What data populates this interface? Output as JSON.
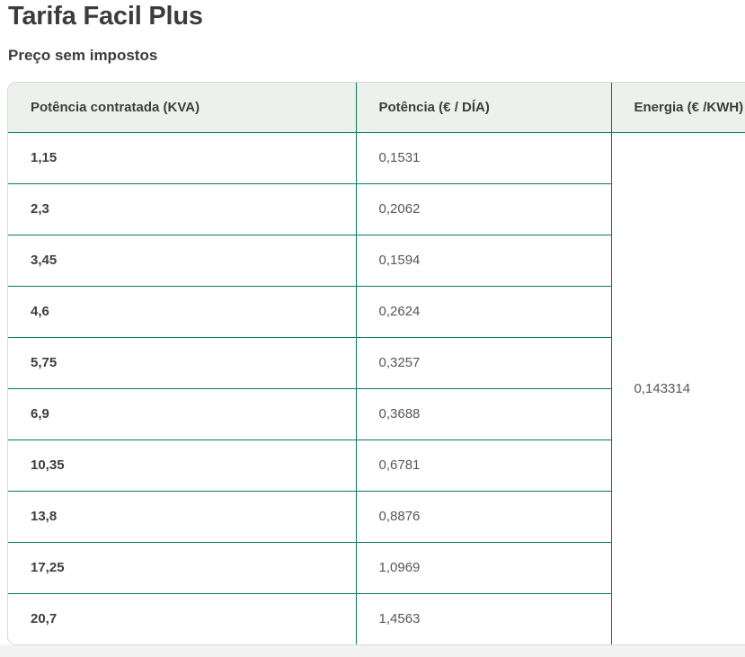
{
  "page": {
    "title": "Tarifa Facil Plus",
    "subtitle": "Preço sem impostos"
  },
  "table": {
    "columns": [
      "Potência contratada (KVA)",
      "Potência (€ / DÍA)",
      "Energia (€ /KWH)"
    ],
    "rows": [
      {
        "kva": "1,15",
        "potencia": "0,1531"
      },
      {
        "kva": "2,3",
        "potencia": "0,2062"
      },
      {
        "kva": "3,45",
        "potencia": "0,1594"
      },
      {
        "kva": "4,6",
        "potencia": "0,2624"
      },
      {
        "kva": "5,75",
        "potencia": "0,3257"
      },
      {
        "kva": "6,9",
        "potencia": "0,3688"
      },
      {
        "kva": "10,35",
        "potencia": "0,6781"
      },
      {
        "kva": "13,8",
        "potencia": "0,8876"
      },
      {
        "kva": "17,25",
        "potencia": "1,0969"
      },
      {
        "kva": "20,7",
        "potencia": "1,4563"
      }
    ],
    "energia_value": "0,143314",
    "colors": {
      "border_green": "#087b5b",
      "header_bg": "#edf1ee"
    }
  }
}
